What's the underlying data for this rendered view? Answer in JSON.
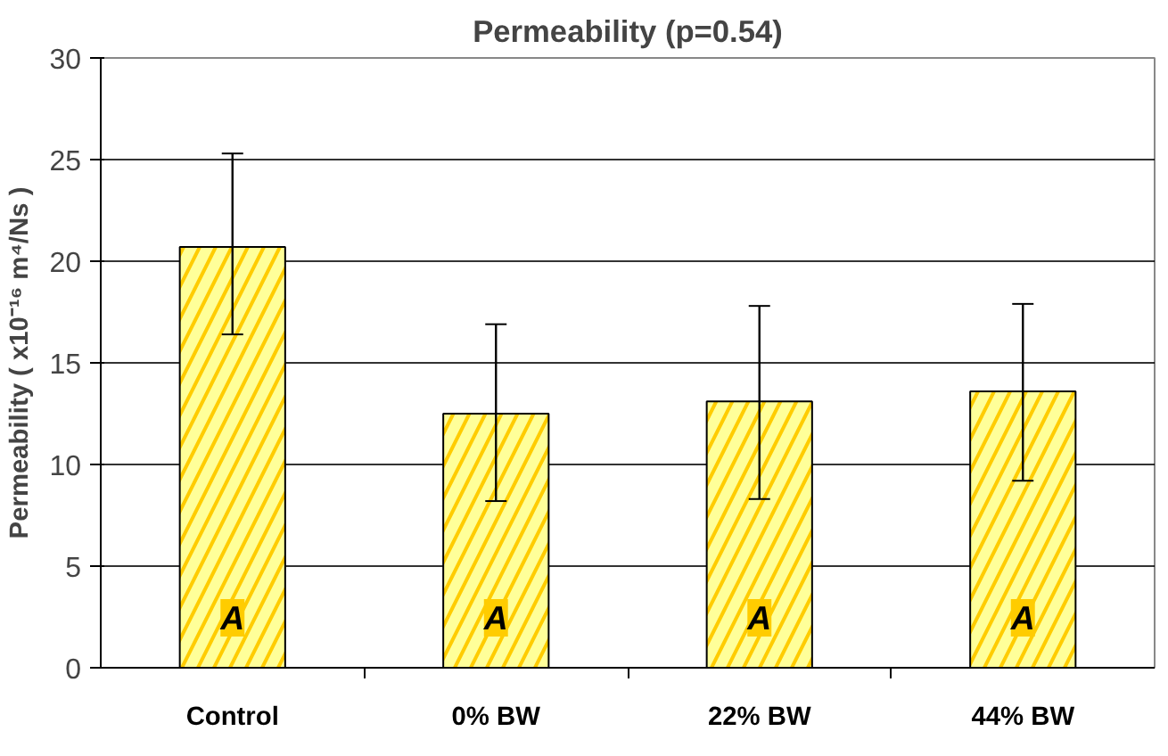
{
  "chart_data": {
    "type": "bar",
    "title": "Permeability (p=0.54)",
    "ylabel": "Permeability ( x10⁻¹⁶ m⁴/Ns )",
    "categories": [
      "Control",
      "0% BW",
      "22% BW",
      "44% BW"
    ],
    "values": [
      20.7,
      12.5,
      13.1,
      13.6
    ],
    "errors": [
      [
        16.4,
        25.3
      ],
      [
        8.2,
        16.9
      ],
      [
        8.3,
        17.8
      ],
      [
        9.2,
        17.9
      ]
    ],
    "color": "#ffcc00",
    "annotations": [
      "A",
      "A",
      "A",
      "A"
    ],
    "ylim": [
      0,
      30
    ],
    "yticks": [
      0,
      5,
      10,
      15,
      20,
      25,
      30
    ],
    "grid": "y"
  }
}
